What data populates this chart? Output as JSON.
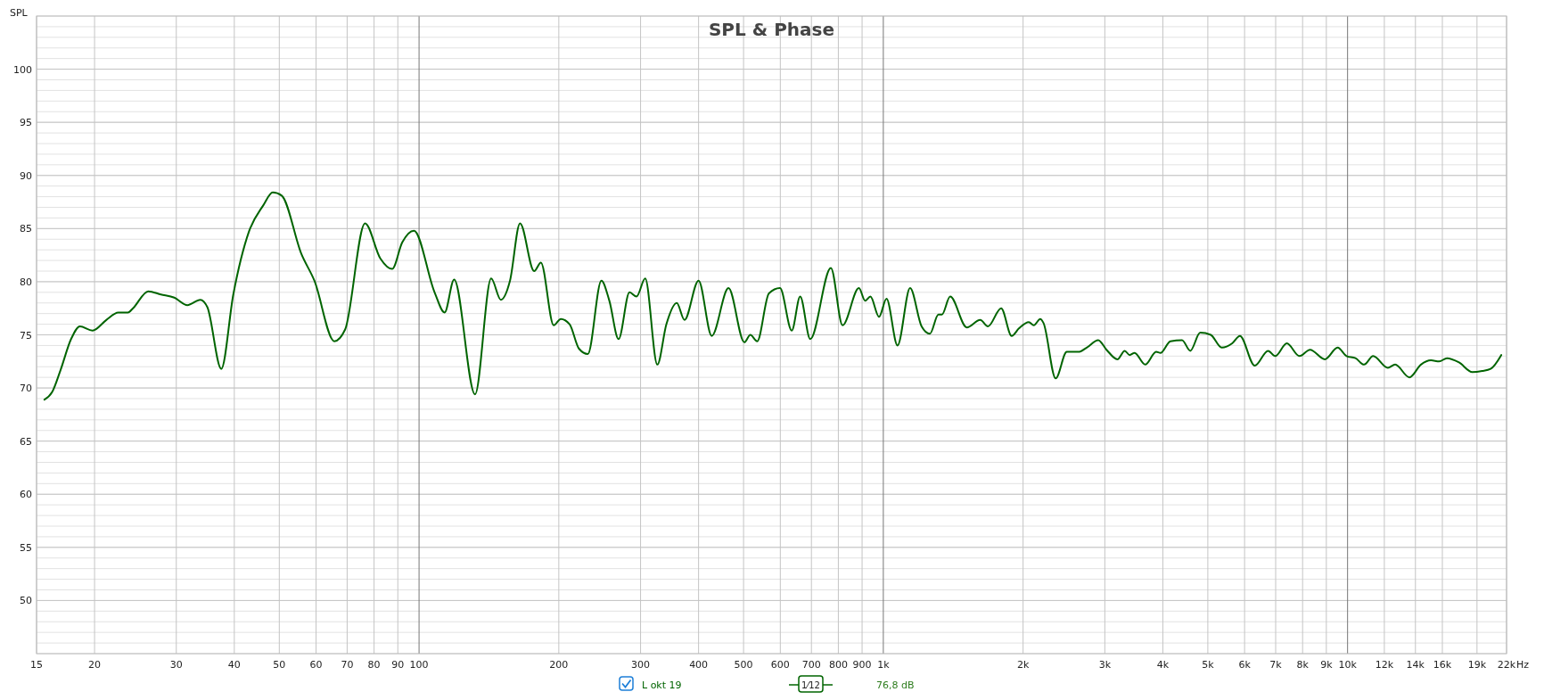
{
  "chart_data": {
    "type": "line",
    "title": "SPL & Phase",
    "ylabel": "SPL",
    "log": "x",
    "xlim": [
      15,
      22000
    ],
    "ylim": [
      45,
      105
    ],
    "xticks": [
      15,
      20,
      30,
      40,
      50,
      60,
      70,
      80,
      90,
      100,
      200,
      300,
      400,
      500,
      600,
      700,
      800,
      900,
      {
        "value": 1000,
        "label": "1k"
      },
      {
        "value": 2000,
        "label": "2k"
      },
      {
        "value": 3000,
        "label": "3k"
      },
      {
        "value": 4000,
        "label": "4k"
      },
      {
        "value": 5000,
        "label": "5k"
      },
      {
        "value": 6000,
        "label": "6k"
      },
      {
        "value": 7000,
        "label": "7k"
      },
      {
        "value": 8000,
        "label": "8k"
      },
      {
        "value": 9000,
        "label": "9k"
      },
      {
        "value": 10000,
        "label": "10k"
      },
      {
        "value": 12000,
        "label": "12k"
      },
      {
        "value": 14000,
        "label": "14k"
      },
      {
        "value": 16000,
        "label": "16k"
      },
      {
        "value": 19000,
        "label": "19k"
      },
      {
        "value": 22000,
        "label": "22k"
      }
    ],
    "xlabel": "Hz",
    "yticks": [
      50,
      55,
      60,
      65,
      70,
      75,
      80,
      85,
      90,
      95,
      100
    ],
    "grid": true,
    "legend": "bottom",
    "annotations": [
      "1⁄12",
      "76,8 dB"
    ],
    "series": [
      {
        "name": "L okt 19",
        "color": "#006400",
        "x": [
          15.6,
          16.2,
          16.9,
          17.8,
          18.6,
          19.8,
          21.2,
          22.5,
          23.6,
          24.2,
          26.1,
          27.8,
          29.7,
          31.7,
          33.8,
          35,
          37.5,
          39.8,
          43,
          46.2,
          48.4,
          50.6,
          55.8,
          59.5,
          65.7,
          69.3,
          76.5,
          82.5,
          87.5,
          92,
          97.5,
          108,
          113.5,
          119,
          132,
          143,
          150,
          157,
          165,
          177,
          183,
          195,
          202,
          211,
          221,
          231,
          247,
          257,
          269,
          284,
          294,
          307,
          326,
          341,
          359,
          373,
          400,
          427,
          464,
          502,
          517,
          535,
          567,
          599,
          635,
          662,
          696,
          771,
          817,
          886,
          914,
          938,
          979,
          1016,
          1073,
          1142,
          1209,
          1260,
          1314,
          1337,
          1393,
          1513,
          1617,
          1680,
          1794,
          1890,
          1959,
          2058,
          2109,
          2178,
          2214,
          2351,
          2484,
          2631,
          2742,
          2904,
          3025,
          3193,
          3311,
          3392,
          3477,
          3665,
          3870,
          3954,
          4153,
          4400,
          4583,
          4815,
          5072,
          5356,
          5644,
          5862,
          6310,
          6741,
          6984,
          7398,
          7878,
          8301,
          8935,
          9519,
          9946,
          10400,
          10850,
          11350,
          12210,
          12660,
          13590,
          14390,
          15120,
          15750,
          16370,
          17380,
          18560,
          19500,
          20330,
          21430
        ],
        "values": [
          68.9,
          69.6,
          71.7,
          74.6,
          75.8,
          75.4,
          76.4,
          77.1,
          77.1,
          77.5,
          79.1,
          78.8,
          78.5,
          77.8,
          78.3,
          77.6,
          71.8,
          78.8,
          84.7,
          87.2,
          88.4,
          88.1,
          82.6,
          80.1,
          74.4,
          75.5,
          85.5,
          82.2,
          81.2,
          83.7,
          84.8,
          79.0,
          77.1,
          80.2,
          69.4,
          80.3,
          78.3,
          80.1,
          85.5,
          81.0,
          81.8,
          75.9,
          76.5,
          76.0,
          73.7,
          73.2,
          80.1,
          78.2,
          74.6,
          79.0,
          78.6,
          80.3,
          72.2,
          76.0,
          78.0,
          76.4,
          80.1,
          74.9,
          79.4,
          74.3,
          75.0,
          74.4,
          78.9,
          79.4,
          75.4,
          78.6,
          74.6,
          81.3,
          75.9,
          79.4,
          78.2,
          78.6,
          76.7,
          78.4,
          74.0,
          79.4,
          75.8,
          75.1,
          76.9,
          76.9,
          78.6,
          75.7,
          76.4,
          75.8,
          77.5,
          74.9,
          75.6,
          76.2,
          75.9,
          76.5,
          76.1,
          70.9,
          73.4,
          73.4,
          73.8,
          74.5,
          73.6,
          72.7,
          73.5,
          73.1,
          73.3,
          72.2,
          73.4,
          73.3,
          74.4,
          74.5,
          73.5,
          75.2,
          75.0,
          73.8,
          74.2,
          74.9,
          72.1,
          73.5,
          73.0,
          74.2,
          73.0,
          73.6,
          72.7,
          73.8,
          73.0,
          72.8,
          72.2,
          73.0,
          71.9,
          72.2,
          71.0,
          72.2,
          72.6,
          72.5,
          72.8,
          72.4,
          71.5,
          71.6,
          71.8,
          73.1
        ]
      }
    ]
  }
}
